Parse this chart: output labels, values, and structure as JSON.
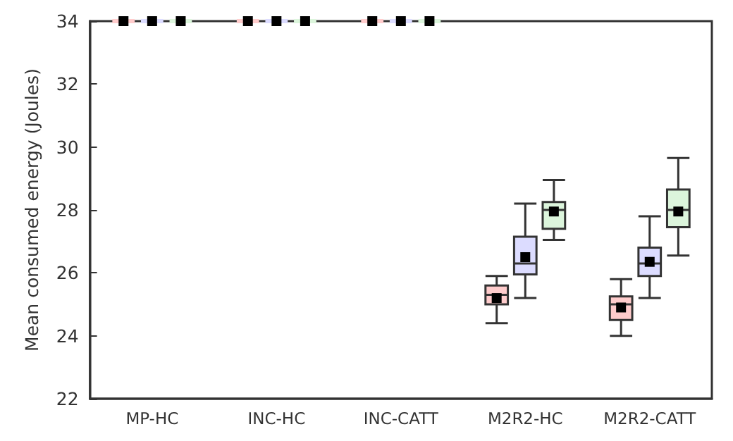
{
  "chart_data": {
    "type": "box",
    "ylabel": "Mean consumed energy (Joules)",
    "categories": [
      "MP-HC",
      "INC-HC",
      "INC-CATT",
      "M2R2-HC",
      "M2R2-CATT"
    ],
    "ylim": [
      22,
      34
    ],
    "yticks": [
      22,
      24,
      26,
      28,
      30,
      32,
      34
    ],
    "grid": false,
    "marker": "square",
    "series": [
      {
        "color": "#ffcccc",
        "boxes": [
          {
            "low": 34,
            "q1": 34,
            "median": 34,
            "q3": 34,
            "high": 34,
            "mean": 34
          },
          {
            "low": 34,
            "q1": 34,
            "median": 34,
            "q3": 34,
            "high": 34,
            "mean": 34
          },
          {
            "low": 34,
            "q1": 34,
            "median": 34,
            "q3": 34,
            "high": 34,
            "mean": 34
          },
          {
            "low": 24.4,
            "q1": 25.0,
            "median": 25.3,
            "q3": 25.6,
            "high": 25.9,
            "mean": 25.2
          },
          {
            "low": 24.0,
            "q1": 24.5,
            "median": 25.0,
            "q3": 25.25,
            "high": 25.8,
            "mean": 24.9
          }
        ]
      },
      {
        "color": "#dcdcff",
        "boxes": [
          {
            "low": 34,
            "q1": 34,
            "median": 34,
            "q3": 34,
            "high": 34,
            "mean": 34
          },
          {
            "low": 34,
            "q1": 34,
            "median": 34,
            "q3": 34,
            "high": 34,
            "mean": 34
          },
          {
            "low": 34,
            "q1": 34,
            "median": 34,
            "q3": 34,
            "high": 34,
            "mean": 34
          },
          {
            "low": 25.2,
            "q1": 25.95,
            "median": 26.3,
            "q3": 27.15,
            "high": 28.2,
            "mean": 26.5
          },
          {
            "low": 25.2,
            "q1": 25.9,
            "median": 26.3,
            "q3": 26.8,
            "high": 27.8,
            "mean": 26.35
          }
        ]
      },
      {
        "color": "#dcf5dc",
        "boxes": [
          {
            "low": 34,
            "q1": 34,
            "median": 34,
            "q3": 34,
            "high": 34,
            "mean": 34
          },
          {
            "low": 34,
            "q1": 34,
            "median": 34,
            "q3": 34,
            "high": 34,
            "mean": 34
          },
          {
            "low": 34,
            "q1": 34,
            "median": 34,
            "q3": 34,
            "high": 34,
            "mean": 34
          },
          {
            "low": 27.05,
            "q1": 27.4,
            "median": 28.0,
            "q3": 28.25,
            "high": 28.95,
            "mean": 27.95
          },
          {
            "low": 26.55,
            "q1": 27.45,
            "median": 28.0,
            "q3": 28.65,
            "high": 29.65,
            "mean": 27.95
          }
        ]
      }
    ]
  }
}
